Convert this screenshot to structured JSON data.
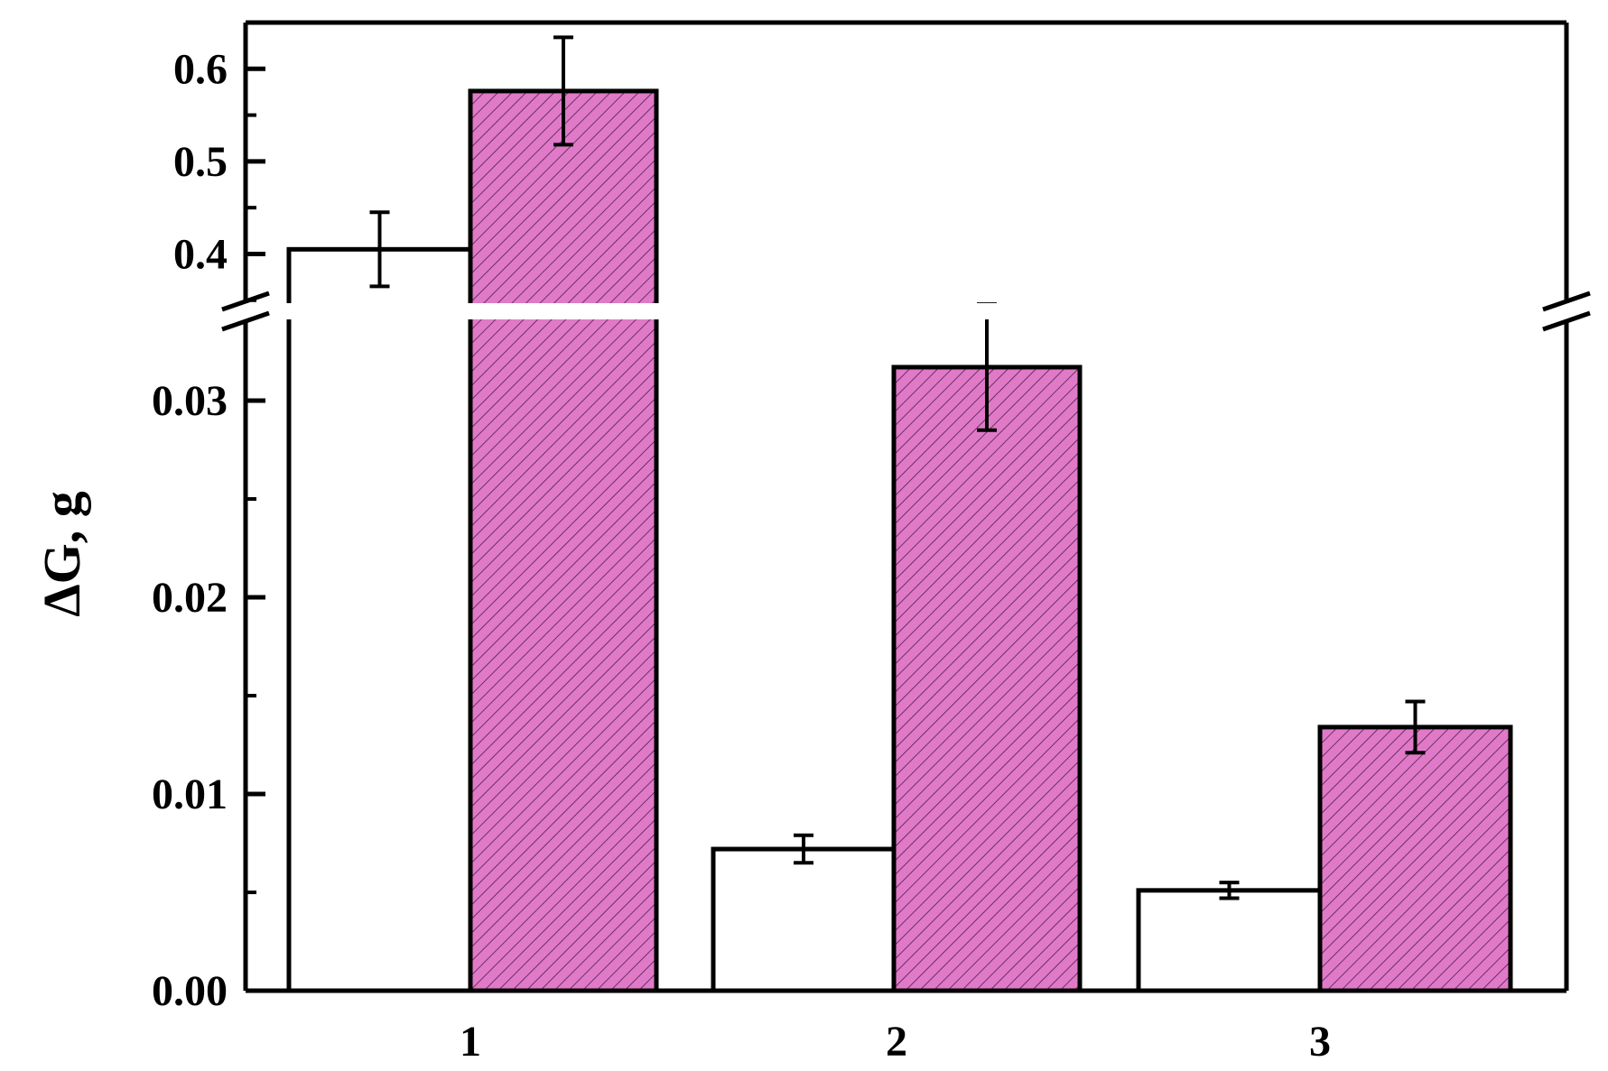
{
  "chart_data": {
    "type": "bar",
    "title": "",
    "xlabel": "",
    "ylabel": "ΔG, g",
    "categories": [
      "1",
      "2",
      "3"
    ],
    "series": [
      {
        "fill": "#ffffff",
        "hatch": false,
        "values": [
          0.405,
          0.0072,
          0.0051
        ],
        "errors": [
          0.04,
          0.0007,
          0.0004
        ]
      },
      {
        "fill": "#e07ac8",
        "hatch": true,
        "hatch_color": "#6b3060",
        "values": [
          0.576,
          0.0317,
          0.0134
        ],
        "errors": [
          0.058,
          0.0032,
          0.0013
        ]
      }
    ],
    "y_axis_break": true,
    "y_lower": {
      "range": [
        0,
        0.035
      ],
      "ticks": [
        "0.00",
        "0.01",
        "0.02",
        "0.03"
      ],
      "tick_values": [
        0,
        0.01,
        0.02,
        0.03
      ],
      "minor_tick_values": [
        0.005,
        0.015,
        0.025
      ]
    },
    "y_upper": {
      "range": [
        0.34,
        0.65
      ],
      "ticks": [
        "0.4",
        "0.5",
        "0.6"
      ],
      "tick_values": [
        0.4,
        0.5,
        0.6
      ],
      "minor_tick_values": [
        0.35,
        0.45,
        0.55,
        0.65
      ]
    },
    "grid": false,
    "legend": "none",
    "colors": {
      "axis": "#000000",
      "plain_bar": "#ffffff",
      "hatched_bar": "#e07ac8"
    }
  }
}
